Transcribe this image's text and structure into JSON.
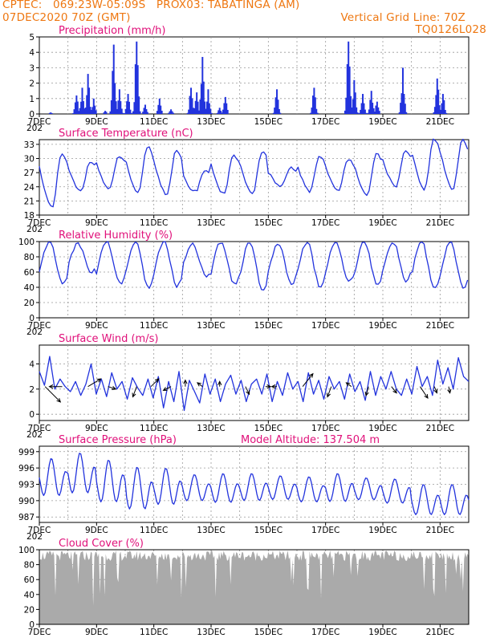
{
  "header": {
    "line1": "CPTEC:   069:23W-05:09S   PROX03: TABATINGA (AM)",
    "line2_left": "07DEC2020 70Z (GMT)",
    "line2_right": "Vertical Grid Line: 70Z",
    "line3_right": "TQ0126L028"
  },
  "colors": {
    "header": "#ee7711",
    "title": "#e0107a",
    "series": "#2233dd",
    "cloud": "#aaaaaa",
    "grid": "#999999"
  },
  "x_axis": {
    "tick_labels": [
      "7DEC",
      "9DEC",
      "11DEC",
      "13DEC",
      "15DEC",
      "17DEC",
      "19DEC",
      "21DEC"
    ],
    "tick_days": [
      0,
      2,
      4,
      6,
      8,
      10,
      12,
      14
    ],
    "span_days": 15,
    "stub_label": "202"
  },
  "chart_data": [
    {
      "type": "bar",
      "title": "Precipitation (mm/h)",
      "ylim": [
        0,
        5
      ],
      "yticks": [
        "0",
        "1",
        "2",
        "3",
        "4",
        "5"
      ],
      "grid": true,
      "peaks": [
        {
          "day": 0.4,
          "value": 0.1
        },
        {
          "day": 1.3,
          "value": 1.2
        },
        {
          "day": 1.5,
          "value": 1.7
        },
        {
          "day": 1.7,
          "value": 2.6
        },
        {
          "day": 1.9,
          "value": 1.0
        },
        {
          "day": 2.3,
          "value": 0.2
        },
        {
          "day": 2.6,
          "value": 4.5
        },
        {
          "day": 2.8,
          "value": 1.6
        },
        {
          "day": 3.1,
          "value": 1.3
        },
        {
          "day": 3.4,
          "value": 4.7
        },
        {
          "day": 3.7,
          "value": 0.6
        },
        {
          "day": 4.2,
          "value": 1.0
        },
        {
          "day": 4.6,
          "value": 0.3
        },
        {
          "day": 5.3,
          "value": 1.7
        },
        {
          "day": 5.5,
          "value": 1.4
        },
        {
          "day": 5.7,
          "value": 3.7
        },
        {
          "day": 5.9,
          "value": 1.6
        },
        {
          "day": 6.3,
          "value": 0.4
        },
        {
          "day": 6.5,
          "value": 1.1
        },
        {
          "day": 8.3,
          "value": 1.6
        },
        {
          "day": 9.6,
          "value": 1.7
        },
        {
          "day": 10.8,
          "value": 4.7
        },
        {
          "day": 11.0,
          "value": 2.2
        },
        {
          "day": 11.3,
          "value": 1.3
        },
        {
          "day": 11.6,
          "value": 1.5
        },
        {
          "day": 11.8,
          "value": 0.8
        },
        {
          "day": 12.7,
          "value": 3.0
        },
        {
          "day": 13.9,
          "value": 2.3
        },
        {
          "day": 14.1,
          "value": 1.3
        }
      ]
    },
    {
      "type": "line",
      "title": "Surface Temperature (nC)",
      "ylim": [
        18,
        34
      ],
      "yticks": [
        "18",
        "21",
        "24",
        "27",
        "30",
        "33"
      ],
      "grid": true,
      "daily_max": [
        31.0,
        29.5,
        30.5,
        32.5,
        31.5,
        27.5,
        30.5,
        31.5,
        28.0,
        30.5,
        30.0,
        31.0,
        31.5,
        34.0
      ],
      "daily_min": [
        19.5,
        23.0,
        23.5,
        22.5,
        22.5,
        23.0,
        22.5,
        22.5,
        24.0,
        23.0,
        23.0,
        22.0,
        24.0,
        23.5
      ]
    },
    {
      "type": "line",
      "title": "Relative Humidity (%)",
      "ylim": [
        0,
        100
      ],
      "yticks": [
        "0",
        "20",
        "40",
        "60",
        "80",
        "100"
      ],
      "grid": true,
      "daily_max": [
        100,
        97,
        100,
        100,
        100,
        98,
        100,
        100,
        98,
        100,
        100,
        100,
        100,
        100
      ],
      "daily_min": [
        45,
        60,
        45,
        40,
        42,
        55,
        45,
        35,
        45,
        40,
        47,
        42,
        48,
        38
      ]
    },
    {
      "type": "line",
      "title": "Surface Wind (m/s)",
      "ylim": [
        -0.5,
        5.5
      ],
      "yticks": [
        "0",
        "2",
        "4"
      ],
      "grid": true,
      "values": [
        3.4,
        2.3,
        4.6,
        2.0,
        2.8,
        2.2,
        1.8,
        2.6,
        1.5,
        2.4,
        4.0,
        1.6,
        2.8,
        1.4,
        3.3,
        2.0,
        2.6,
        1.2,
        2.9,
        2.1,
        1.5,
        2.8,
        1.3,
        3.0,
        0.5,
        2.6,
        1.0,
        3.4,
        0.3,
        2.7,
        1.8,
        0.9,
        3.2,
        1.6,
        2.8,
        1.0,
        2.4,
        3.1,
        1.6,
        2.7,
        1.0,
        2.4,
        2.8,
        1.6,
        3.2,
        1.0,
        2.6,
        1.5,
        3.3,
        2.0,
        2.6,
        1.0,
        3.3,
        1.6,
        2.7,
        1.2,
        3.0,
        2.0,
        2.6,
        1.2,
        3.2,
        1.8,
        2.6,
        1.1,
        3.4,
        1.5,
        3.0,
        2.0,
        3.4,
        2.0,
        1.5,
        2.8,
        1.6,
        3.8,
        2.2,
        3.0,
        1.5,
        4.3,
        2.4,
        3.7,
        2.0,
        4.5,
        3.0,
        2.6
      ],
      "vectors": [
        {
          "day": 0.2,
          "u": 1.2,
          "v": -1.2
        },
        {
          "day": 0.8,
          "u": -1.0,
          "v": 0.0
        },
        {
          "day": 1.7,
          "u": 1.0,
          "v": 0.6
        },
        {
          "day": 2.4,
          "u": 0.6,
          "v": -0.2
        },
        {
          "day": 3.4,
          "u": -0.3,
          "v": -0.8
        },
        {
          "day": 3.9,
          "u": 0.6,
          "v": 0.6
        },
        {
          "day": 4.6,
          "u": -0.6,
          "v": -0.3
        },
        {
          "day": 5.1,
          "u": 0.0,
          "v": 0.5
        },
        {
          "day": 5.7,
          "u": -0.4,
          "v": 0.3
        },
        {
          "day": 6.3,
          "u": 0.0,
          "v": 0.4
        },
        {
          "day": 7.2,
          "u": 0.3,
          "v": -0.6
        },
        {
          "day": 7.9,
          "u": 0.4,
          "v": 0.0
        },
        {
          "day": 8.3,
          "u": -0.4,
          "v": 0.0
        },
        {
          "day": 9.2,
          "u": 0.8,
          "v": 1.0
        },
        {
          "day": 10.2,
          "u": -0.3,
          "v": -0.8
        },
        {
          "day": 10.9,
          "u": -0.4,
          "v": 0.3
        },
        {
          "day": 11.5,
          "u": -0.2,
          "v": -0.7
        },
        {
          "day": 12.3,
          "u": 0.4,
          "v": -0.5
        },
        {
          "day": 13.3,
          "u": 0.6,
          "v": -0.9
        },
        {
          "day": 13.8,
          "u": 0.2,
          "v": -0.5
        },
        {
          "day": 14.3,
          "u": 0.1,
          "v": -0.5
        }
      ]
    },
    {
      "type": "line",
      "title": "Surface Pressure (hPa)",
      "annotation": "Model Altitude: 137.504 m",
      "ylim": [
        986,
        1000
      ],
      "yticks": [
        "987",
        "990",
        "993",
        "996",
        "999"
      ],
      "grid": true,
      "daily_max": [
        997.8,
        998.8,
        997.5,
        996.2,
        996.0,
        994.8,
        995.0,
        995.0,
        994.6,
        994.4,
        995.0,
        994.2,
        994.0,
        993.0
      ],
      "daily_min": [
        989.8,
        990.2,
        988.5,
        987.2,
        988.2,
        989.2,
        988.8,
        989.2,
        989.5,
        989.0,
        989.0,
        989.5,
        988.8,
        986.5
      ]
    },
    {
      "type": "area",
      "title": "Cloud Cover (%)",
      "ylim": [
        0,
        100
      ],
      "yticks": [
        "0",
        "20",
        "40",
        "60",
        "80",
        "100"
      ],
      "grid": true,
      "typical_value": 92
    }
  ]
}
